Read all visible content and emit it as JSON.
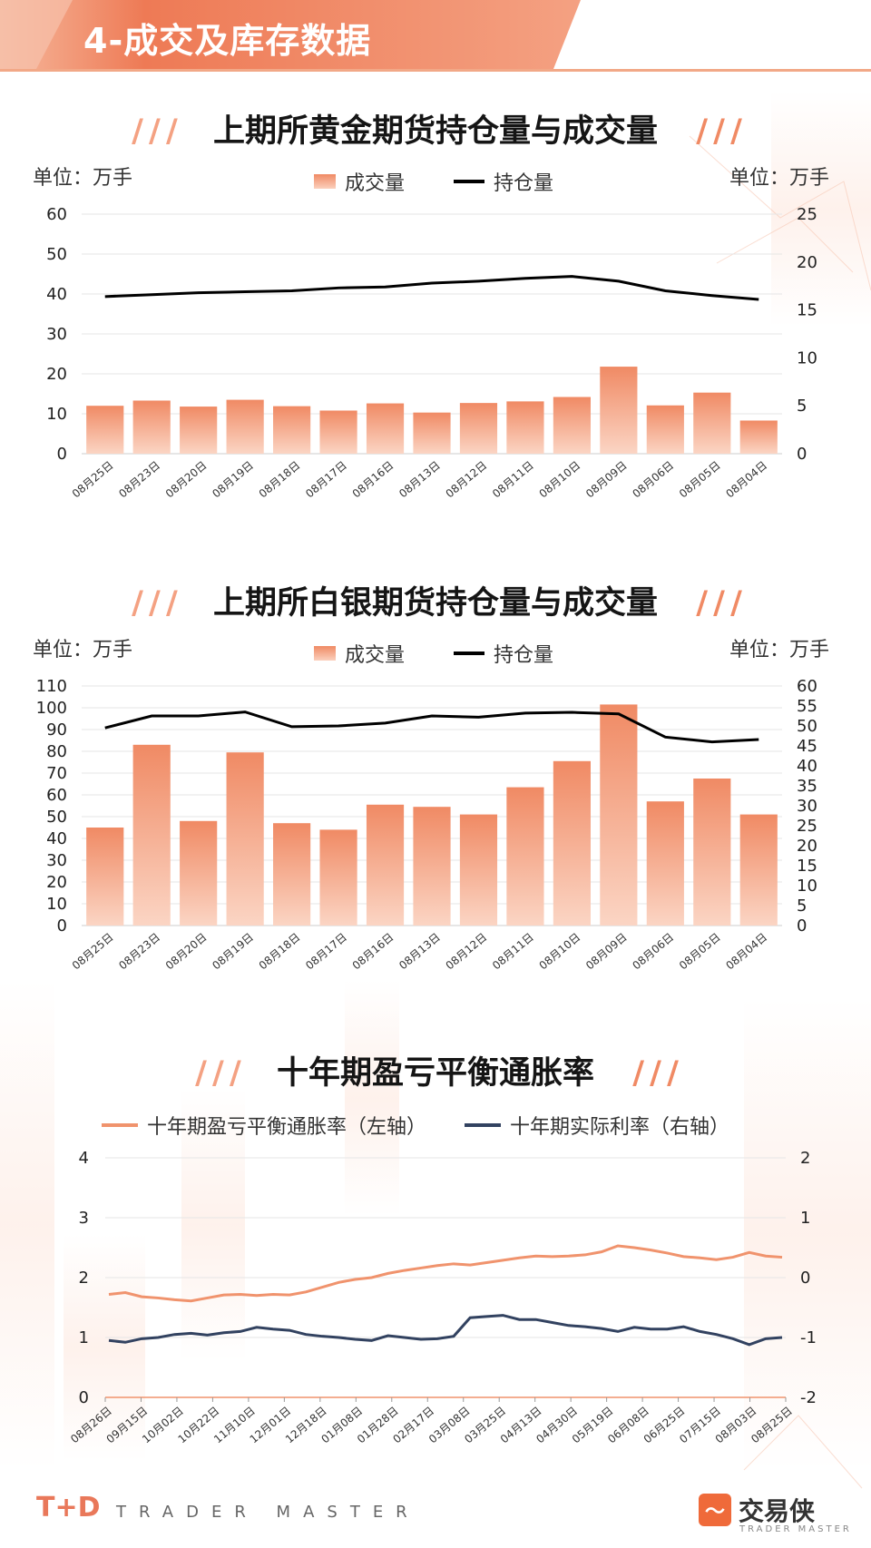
{
  "header": {
    "title": "4-成交及库存数据"
  },
  "gold": {
    "title": "上期所黄金期货持仓量与成交量",
    "unit_left": "单位：万手",
    "unit_right": "单位：万手",
    "legend_bar": "成交量",
    "legend_line": "持仓量"
  },
  "silver": {
    "title": "上期所白银期货持仓量与成交量",
    "unit_left": "单位：万手",
    "unit_right": "单位：万手",
    "legend_bar": "成交量",
    "legend_line": "持仓量"
  },
  "tips": {
    "title": "十年期盈亏平衡通胀率",
    "legend_left": "十年期盈亏平衡通胀率（左轴）",
    "legend_right": "十年期实际利率（右轴）"
  },
  "footer": {
    "logo": "T+D",
    "tagline": "TRADER MASTER",
    "brand": "交易侠",
    "brand_sub": "TRADER MASTER"
  },
  "colors": {
    "accent": "#f0936d",
    "bar_top": "#f08a64",
    "bar_bottom": "#fbd5c4",
    "line": "#000000",
    "navy": "#324260"
  },
  "chart_data": [
    {
      "type": "bar",
      "categories": [
        "08月25日",
        "08月23日",
        "08月20日",
        "08月19日",
        "08月18日",
        "08月17日",
        "08月16日",
        "08月13日",
        "08月12日",
        "08月11日",
        "08月10日",
        "08月09日",
        "08月06日",
        "08月05日",
        "08月04日"
      ],
      "series": [
        {
          "name": "成交量",
          "axis": "left",
          "values": [
            12,
            13.3,
            11.8,
            13.5,
            11.9,
            10.8,
            12.6,
            10.3,
            12.7,
            13.1,
            14.2,
            21.8,
            12.1,
            15.3,
            8.3
          ]
        },
        {
          "name": "持仓量",
          "axis": "right",
          "type": "line",
          "values": [
            16.4,
            16.6,
            16.8,
            16.9,
            17.0,
            17.3,
            17.4,
            17.8,
            18.0,
            18.3,
            18.5,
            18.0,
            17.0,
            16.5,
            16.1
          ]
        }
      ],
      "ylim": [
        0,
        60
      ],
      "yticks": [
        0,
        10,
        20,
        30,
        40,
        50,
        60
      ],
      "y2lim": [
        0,
        25
      ],
      "y2ticks": [
        0,
        5,
        10,
        15,
        20,
        25
      ]
    },
    {
      "type": "bar",
      "categories": [
        "08月25日",
        "08月23日",
        "08月20日",
        "08月19日",
        "08月18日",
        "08月17日",
        "08月16日",
        "08月13日",
        "08月12日",
        "08月11日",
        "08月10日",
        "08月09日",
        "08月06日",
        "08月05日",
        "08月04日"
      ],
      "series": [
        {
          "name": "成交量",
          "axis": "left",
          "values": [
            45,
            83,
            48,
            79.5,
            47,
            44,
            55.5,
            54.5,
            51,
            63.5,
            75.5,
            101.5,
            57,
            67.5,
            51
          ]
        },
        {
          "name": "持仓量",
          "axis": "right",
          "type": "line",
          "values": [
            49.5,
            52.5,
            52.5,
            53.5,
            49.8,
            50,
            50.7,
            52.5,
            52.2,
            53.2,
            53.4,
            53,
            47.2,
            46,
            46.6
          ]
        }
      ],
      "ylim": [
        0,
        110
      ],
      "yticks": [
        0,
        10,
        20,
        30,
        40,
        50,
        60,
        70,
        80,
        90,
        100,
        110
      ],
      "y2lim": [
        0,
        60
      ],
      "y2ticks": [
        0,
        5,
        10,
        15,
        20,
        25,
        30,
        35,
        40,
        45,
        50,
        55,
        60
      ]
    },
    {
      "type": "line",
      "x_ticks": [
        "08月26日",
        "09月15日",
        "10月02日",
        "10月22日",
        "11月10日",
        "12月01日",
        "12月18日",
        "01月08日",
        "01月28日",
        "02月17日",
        "03月08日",
        "03月25日",
        "04月13日",
        "04月30日",
        "05月19日",
        "06月08日",
        "06月25日",
        "07月15日",
        "08月03日",
        "08月25日"
      ],
      "series": [
        {
          "name": "十年期盈亏平衡通胀率（左轴）",
          "axis": "left",
          "values": [
            1.72,
            1.75,
            1.68,
            1.66,
            1.63,
            1.61,
            1.66,
            1.71,
            1.72,
            1.7,
            1.72,
            1.71,
            1.76,
            1.84,
            1.92,
            1.97,
            2.0,
            2.07,
            2.12,
            2.16,
            2.2,
            2.23,
            2.21,
            2.25,
            2.29,
            2.33,
            2.36,
            2.35,
            2.36,
            2.38,
            2.43,
            2.53,
            2.5,
            2.46,
            2.41,
            2.35,
            2.33,
            2.3,
            2.34,
            2.42,
            2.36,
            2.34
          ]
        },
        {
          "name": "十年期实际利率（右轴）",
          "axis": "right",
          "values": [
            -1.05,
            -1.08,
            -1.02,
            -1.0,
            -0.95,
            -0.93,
            -0.96,
            -0.92,
            -0.9,
            -0.83,
            -0.86,
            -0.88,
            -0.95,
            -0.98,
            -1.0,
            -1.03,
            -1.05,
            -0.97,
            -1.0,
            -1.03,
            -1.02,
            -0.98,
            -0.67,
            -0.65,
            -0.63,
            -0.7,
            -0.7,
            -0.75,
            -0.8,
            -0.82,
            -0.85,
            -0.9,
            -0.83,
            -0.86,
            -0.86,
            -0.82,
            -0.9,
            -0.95,
            -1.02,
            -1.12,
            -1.02,
            -1.0
          ]
        }
      ],
      "ylim": [
        0,
        4
      ],
      "yticks": [
        0,
        1,
        2,
        3,
        4
      ],
      "y2lim": [
        -2,
        2
      ],
      "y2ticks": [
        -2,
        -1,
        0,
        1,
        2
      ]
    }
  ]
}
